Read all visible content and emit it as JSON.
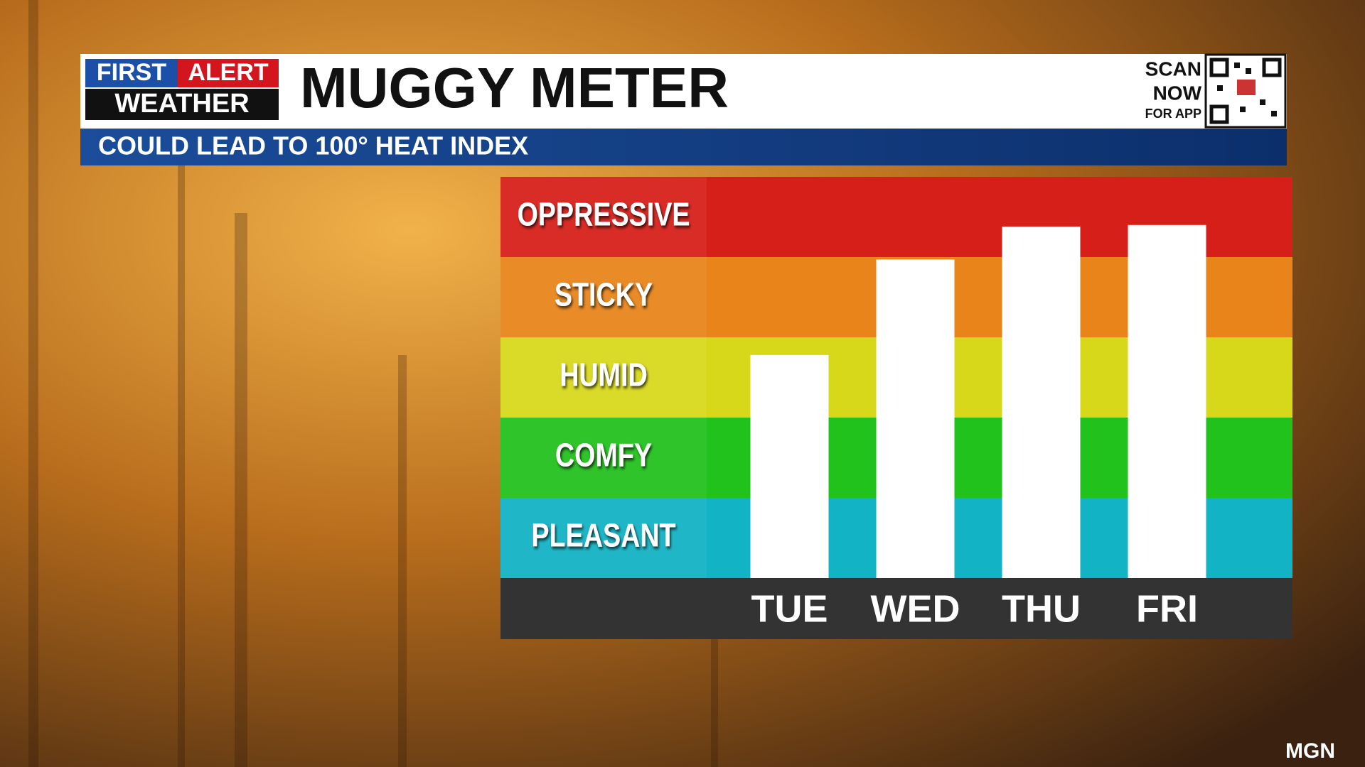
{
  "logo": {
    "first": "FIRST",
    "alert": "ALERT",
    "weather": "WEATHER"
  },
  "qr": {
    "scan": "SCAN",
    "now": "NOW",
    "for_app": "FOR APP"
  },
  "credit": "MGN",
  "chart_data": {
    "type": "bar",
    "title": "MUGGY METER",
    "subtitle": "COULD LEAD TO 100° HEAT INDEX",
    "categories": [
      "TUE",
      "WED",
      "THU",
      "FRI"
    ],
    "values": [
      2.78,
      3.97,
      4.38,
      4.4
    ],
    "color": "#ffffff",
    "ylim": [
      0,
      5
    ],
    "yticks": [
      {
        "value": 0.5,
        "label": "PLEASANT"
      },
      {
        "value": 1.5,
        "label": "COMFY"
      },
      {
        "value": 2.5,
        "label": "HUMID"
      },
      {
        "value": 3.5,
        "label": "STICKY"
      },
      {
        "value": 4.5,
        "label": "OPPRESSIVE"
      }
    ],
    "band_colors": [
      "#12b3c4",
      "#22c21d",
      "#d8d81b",
      "#e8841a",
      "#d71f19"
    ]
  }
}
